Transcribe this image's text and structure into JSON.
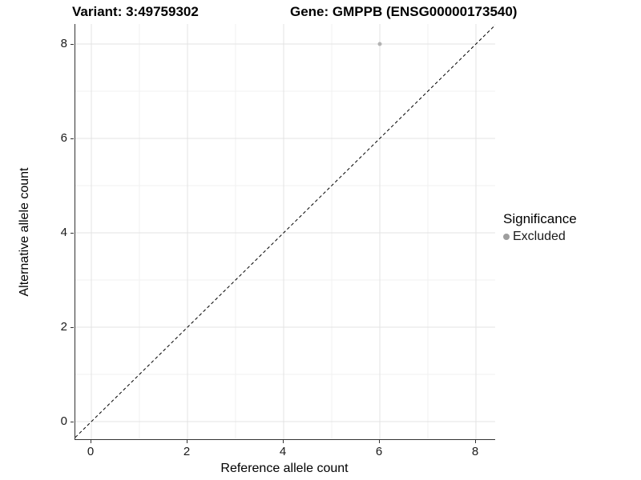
{
  "titles": {
    "variant": "Variant: 3:49759302",
    "gene": "Gene: GMPPB (ENSG00000173540)"
  },
  "legend": {
    "title": "Significance",
    "items": [
      {
        "label": "Excluded",
        "color": "#9e9e9e"
      }
    ]
  },
  "chart_data": {
    "type": "scatter",
    "title": "Variant: 3:49759302   Gene: GMPPB (ENSG00000173540)",
    "xlabel": "Reference allele count",
    "ylabel": "Alternative allele count",
    "xlim": [
      -0.35,
      8.4
    ],
    "ylim": [
      -0.37,
      8.42
    ],
    "x_ticks": [
      0,
      2,
      4,
      6,
      8
    ],
    "y_ticks": [
      0,
      2,
      4,
      6,
      8
    ],
    "x_minor": [
      1,
      3,
      5,
      7
    ],
    "y_minor": [
      1,
      3,
      5,
      7
    ],
    "grid": "major+minor",
    "legend_position": "right",
    "series": [
      {
        "name": "Excluded",
        "color": "#b3b3b3",
        "points": [
          {
            "x": 6,
            "y": 8
          }
        ]
      }
    ],
    "reference_line": {
      "type": "identity",
      "equation": "y = x",
      "style": "dashed",
      "color": "#000000"
    },
    "colors": {
      "grid_major": "#e3e3e3",
      "grid_minor": "#f0f0f0",
      "axis_line": "#333333",
      "point": "#b3b3b3"
    }
  }
}
